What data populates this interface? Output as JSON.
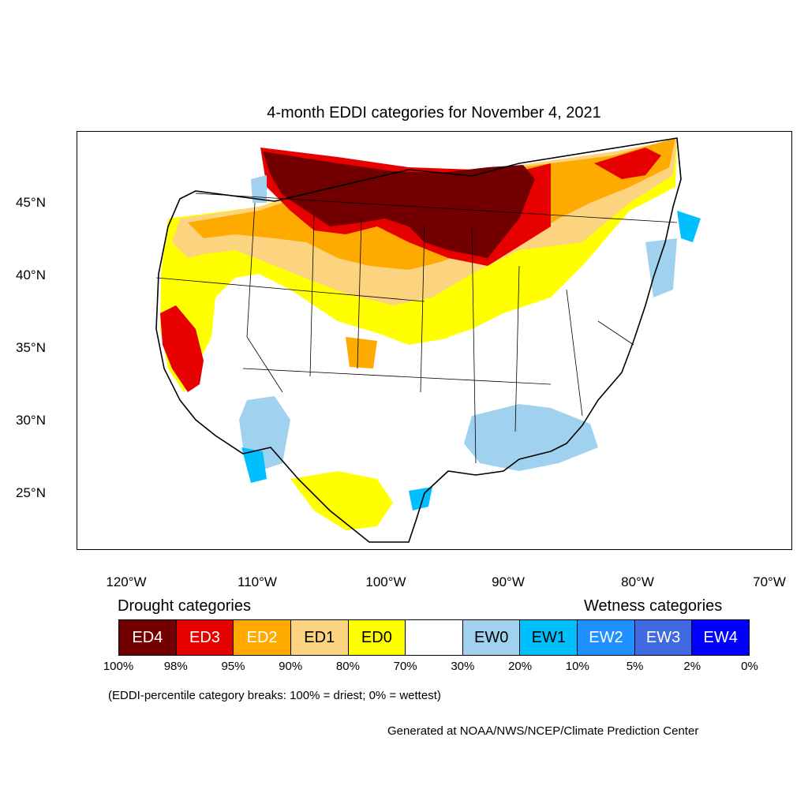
{
  "title": "4-month EDDI categories for November 4, 2021",
  "map": {
    "lat_labels": [
      "45°N",
      "40°N",
      "35°N",
      "30°N",
      "25°N"
    ],
    "lon_labels": [
      "120°W",
      "110°W",
      "100°W",
      "90°W",
      "80°W",
      "70°W"
    ]
  },
  "legend": {
    "drought_heading": "Drought categories",
    "wetness_heading": "Wetness categories",
    "categories": [
      {
        "label": "ED4",
        "color": "#730000",
        "text_color": "#ffffff"
      },
      {
        "label": "ED3",
        "color": "#e60000",
        "text_color": "#ffffff"
      },
      {
        "label": "ED2",
        "color": "#ffaa00",
        "text_color": "#ffffff"
      },
      {
        "label": "ED1",
        "color": "#fcd37f",
        "text_color": "#000000"
      },
      {
        "label": "ED0",
        "color": "#ffff00",
        "text_color": "#000000"
      },
      {
        "label": "",
        "color": "#ffffff",
        "text_color": "#000000"
      },
      {
        "label": "EW0",
        "color": "#a0d2f0",
        "text_color": "#000000"
      },
      {
        "label": "EW1",
        "color": "#00bfff",
        "text_color": "#000000"
      },
      {
        "label": "EW2",
        "color": "#1e90ff",
        "text_color": "#ffffff"
      },
      {
        "label": "EW3",
        "color": "#4169e1",
        "text_color": "#ffffff"
      },
      {
        "label": "EW4",
        "color": "#0000ff",
        "text_color": "#ffffff"
      }
    ],
    "breaks": [
      "100%",
      "98%",
      "95%",
      "90%",
      "80%",
      "70%",
      "30%",
      "20%",
      "10%",
      "5%",
      "2%",
      "0%"
    ],
    "note": "(EDDI-percentile category breaks: 100% = driest; 0% = wettest)"
  },
  "credit": "Generated at NOAA/NWS/NCEP/Climate Prediction Center"
}
